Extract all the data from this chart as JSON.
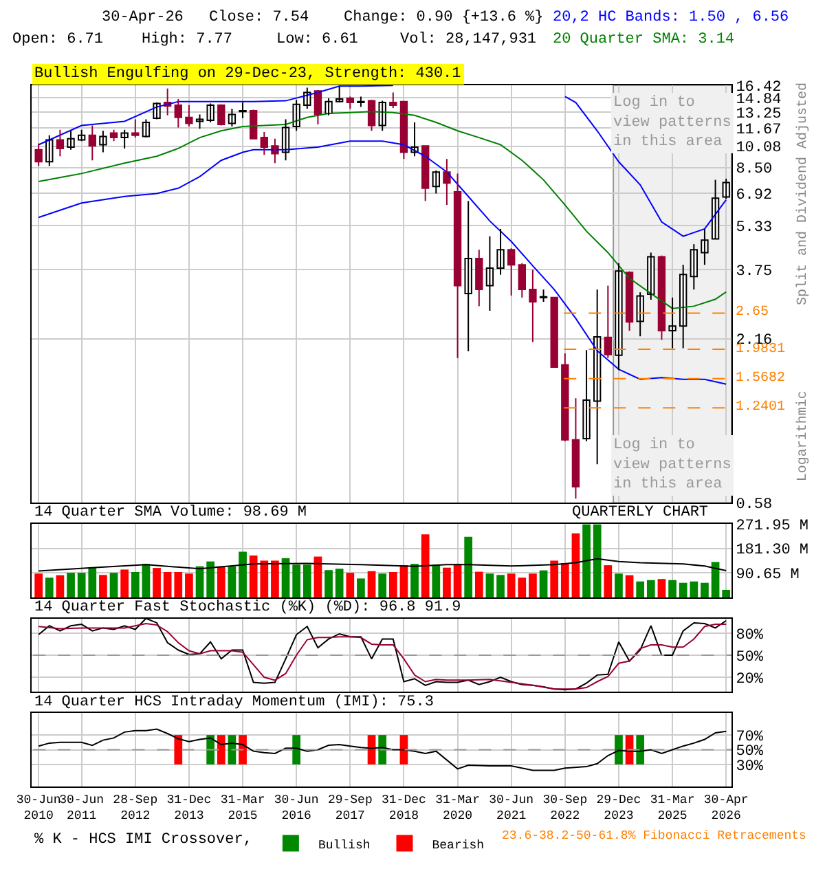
{
  "chart_data": [
    {
      "type": "candlestick",
      "title": "Bullish Engulfing on 29-Dec-23, Strength: 430.1",
      "categories": [
        "30-Jun 2010",
        null,
        null,
        null,
        "30-Jun 2011",
        null,
        null,
        null,
        null,
        "28-Sep 2012",
        null,
        null,
        null,
        null,
        "31-Dec 2013",
        null,
        null,
        null,
        null,
        "31-Mar 2015",
        null,
        null,
        null,
        null,
        "30-Jun 2016",
        null,
        null,
        null,
        null,
        "29-Sep 2017",
        null,
        null,
        null,
        null,
        "31-Dec 2018",
        null,
        null,
        null,
        null,
        "31-Mar 2020",
        null,
        null,
        null,
        null,
        "30-Jun 2021",
        null,
        null,
        null,
        null,
        "30-Sep 2022",
        null,
        null,
        null,
        null,
        "29-Dec 2023",
        null,
        null,
        null,
        null,
        "31-Mar 2025",
        null,
        null,
        null,
        null,
        "30-Apr 2026"
      ],
      "ohlc": [
        [
          9.8,
          10.3,
          8.6,
          8.9
        ],
        [
          8.9,
          11.0,
          8.6,
          10.6
        ],
        [
          10.6,
          11.5,
          9.3,
          9.9
        ],
        [
          10.0,
          11.4,
          9.8,
          10.7
        ],
        [
          10.6,
          11.5,
          10.5,
          11.0
        ],
        [
          11.0,
          11.9,
          9.0,
          10.1
        ],
        [
          10.2,
          11.4,
          9.6,
          10.9
        ],
        [
          11.2,
          11.5,
          10.5,
          10.8
        ],
        [
          10.8,
          11.5,
          9.9,
          11.2
        ],
        [
          11.2,
          12.5,
          10.8,
          11.0
        ],
        [
          10.9,
          12.5,
          10.8,
          12.2
        ],
        [
          12.6,
          14.3,
          12.5,
          14.2
        ],
        [
          14.3,
          16.0,
          12.9,
          13.9
        ],
        [
          14.0,
          14.7,
          11.7,
          12.7
        ],
        [
          12.7,
          14.0,
          11.8,
          12.1
        ],
        [
          12.3,
          13.0,
          11.6,
          12.5
        ],
        [
          12.4,
          14.2,
          12.2,
          14.0
        ],
        [
          14.0,
          14.1,
          11.9,
          12.0
        ],
        [
          12.1,
          13.6,
          11.8,
          13.0
        ],
        [
          13.3,
          14.3,
          12.6,
          13.4
        ],
        [
          13.4,
          13.5,
          10.7,
          10.7
        ],
        [
          10.8,
          11.3,
          9.4,
          10.0
        ],
        [
          10.1,
          10.7,
          8.8,
          9.5
        ],
        [
          9.6,
          12.5,
          9.0,
          11.7
        ],
        [
          11.8,
          14.6,
          11.4,
          14.1
        ],
        [
          14.0,
          16.1,
          13.6,
          15.5
        ],
        [
          15.7,
          15.8,
          12.0,
          13.0
        ],
        [
          13.1,
          14.8,
          12.9,
          14.4
        ],
        [
          14.4,
          16.3,
          14.3,
          14.7
        ],
        [
          14.8,
          15.0,
          13.6,
          14.3
        ],
        [
          14.3,
          15.0,
          13.8,
          14.4
        ],
        [
          14.5,
          14.6,
          11.4,
          11.9
        ],
        [
          11.9,
          14.5,
          11.4,
          14.3
        ],
        [
          14.3,
          15.5,
          13.7,
          14.0
        ],
        [
          14.4,
          14.4,
          9.1,
          9.6
        ],
        [
          9.6,
          12.2,
          9.3,
          10.0
        ],
        [
          10.1,
          10.1,
          6.5,
          7.2
        ],
        [
          7.3,
          8.3,
          6.9,
          8.2
        ],
        [
          8.2,
          9.1,
          6.3,
          7.5
        ],
        [
          7.0,
          8.1,
          1.85,
          3.3
        ],
        [
          3.1,
          6.5,
          1.95,
          4.1
        ],
        [
          4.1,
          4.4,
          2.8,
          3.2
        ],
        [
          3.3,
          4.9,
          2.7,
          3.8
        ],
        [
          3.8,
          5.2,
          3.6,
          4.4
        ],
        [
          4.4,
          4.45,
          3.05,
          3.9
        ],
        [
          3.9,
          3.95,
          3.0,
          3.2
        ],
        [
          3.2,
          3.75,
          2.1,
          2.9
        ],
        [
          3.0,
          3.2,
          2.9,
          3.02
        ],
        [
          3.0,
          3.0,
          1.72,
          1.72
        ],
        [
          1.75,
          1.92,
          0.95,
          0.96
        ],
        [
          0.96,
          1.34,
          0.6,
          0.66
        ],
        [
          0.97,
          1.97,
          0.95,
          1.32
        ],
        [
          1.31,
          3.2,
          0.79,
          2.19
        ],
        [
          2.18,
          3.3,
          1.85,
          1.9
        ],
        [
          1.89,
          3.95,
          1.68,
          3.71
        ],
        [
          3.67,
          3.7,
          2.3,
          2.47
        ],
        [
          2.48,
          3.13,
          2.2,
          3.04
        ],
        [
          3.08,
          4.3,
          2.95,
          4.16
        ],
        [
          4.16,
          4.2,
          2.14,
          2.3
        ],
        [
          2.3,
          3.0,
          2.0,
          2.39
        ],
        [
          2.39,
          3.9,
          2.0,
          3.61
        ],
        [
          3.55,
          4.6,
          3.2,
          4.4
        ],
        [
          4.3,
          5.2,
          3.9,
          4.75
        ],
        [
          4.8,
          7.7,
          4.8,
          6.65
        ],
        [
          6.71,
          7.77,
          6.61,
          7.54
        ]
      ],
      "colors": [
        "#990033",
        "#ffffff",
        "#990033",
        "#ffffff",
        "#ffffff",
        "#990033",
        "#ffffff",
        "#990033",
        "#ffffff",
        "#990033",
        "#ffffff",
        "#ffffff",
        "#990033",
        "#990033",
        "#990033",
        "#ffffff",
        "#ffffff",
        "#990033",
        "#ffffff",
        "#ffffff",
        "#990033",
        "#990033",
        "#990033",
        "#ffffff",
        "#ffffff",
        "#ffffff",
        "#990033",
        "#ffffff",
        "#ffffff",
        "#990033",
        "#ffffff",
        "#990033",
        "#ffffff",
        "#990033",
        "#990033",
        "#ffffff",
        "#990033",
        "#ffffff",
        "#990033",
        "#990033",
        "#ffffff",
        "#990033",
        "#ffffff",
        "#ffffff",
        "#990033",
        "#990033",
        "#990033",
        "#ffffff",
        "#990033",
        "#990033",
        "#990033",
        "#ffffff",
        "#ffffff",
        "#990033",
        "#ffffff",
        "#990033",
        "#ffffff",
        "#ffffff",
        "#990033",
        "#ffffff",
        "#ffffff",
        "#ffffff",
        "#ffffff",
        "#ffffff",
        "#ffffff"
      ],
      "series": [
        {
          "type": "line",
          "color": "#0000ff",
          "values": [
            10.2,
            null,
            null,
            null,
            11.9,
            null,
            null,
            null,
            12.3,
            null,
            null,
            13.8,
            null,
            14.4,
            null,
            null,
            14.4,
            null,
            null,
            null,
            14.4,
            null,
            null,
            14.5,
            null,
            null,
            15.5,
            null,
            16.3,
            null,
            16.3,
            null,
            null,
            16.4,
            null,
            null,
            null,
            null,
            null,
            null,
            null,
            null,
            null,
            null,
            null,
            null,
            null,
            null,
            null,
            null,
            null,
            null,
            null,
            null,
            null,
            null,
            null,
            null,
            null,
            null,
            null,
            null,
            null,
            null,
            null
          ]
        },
        {
          "type": "line",
          "color": "#0000ff",
          "values": [
            null,
            null,
            null,
            null,
            null,
            null,
            null,
            null,
            null,
            null,
            null,
            null,
            null,
            null,
            null,
            null,
            null,
            null,
            null,
            null,
            null,
            null,
            null,
            null,
            null,
            null,
            null,
            null,
            null,
            null,
            null,
            null,
            null,
            null,
            null,
            null,
            null,
            null,
            null,
            null,
            null,
            null,
            null,
            null,
            null,
            null,
            null,
            null,
            null,
            15.0,
            14.3,
            null,
            11.4,
            null,
            8.9,
            null,
            7.4,
            null,
            5.5,
            null,
            4.9,
            null,
            5.2,
            null,
            6.56
          ]
        },
        {
          "type": "line",
          "color": "#0000ff",
          "values": [
            5.7,
            null,
            null,
            null,
            6.4,
            null,
            null,
            null,
            6.74,
            null,
            null,
            6.9,
            null,
            7.2,
            null,
            7.9,
            null,
            9.0,
            null,
            9.6,
            9.8,
            null,
            null,
            9.8,
            null,
            null,
            10.0,
            null,
            null,
            10.5,
            null,
            null,
            10.5,
            null,
            10.2,
            null,
            9.3,
            null,
            8.2,
            null,
            6.74,
            null,
            5.54,
            null,
            4.7,
            null,
            3.87,
            null,
            3.2,
            null,
            2.54,
            null,
            1.96,
            null,
            1.69,
            null,
            1.56,
            null,
            1.58,
            null,
            1.56,
            null,
            1.56,
            null,
            1.5
          ]
        },
        {
          "type": "line",
          "color": "#008000",
          "values": [
            7.6,
            null,
            null,
            null,
            8.1,
            null,
            null,
            null,
            8.8,
            null,
            null,
            9.3,
            null,
            9.9,
            null,
            10.8,
            null,
            11.4,
            null,
            11.8,
            null,
            11.9,
            null,
            12.0,
            null,
            12.7,
            null,
            13.1,
            null,
            13.2,
            null,
            13.3,
            null,
            13.2,
            null,
            12.9,
            null,
            12.2,
            null,
            11.4,
            null,
            10.8,
            null,
            10.2,
            null,
            9.0,
            null,
            7.7,
            null,
            6.3,
            null,
            5.1,
            null,
            4.3,
            null,
            3.5,
            null,
            3.1,
            null,
            2.75,
            null,
            2.8,
            null,
            2.96,
            3.14
          ]
        }
      ],
      "log": true,
      "ylim": [
        0.58,
        16.42
      ],
      "yticks": [
        16.42,
        14.84,
        13.25,
        11.67,
        10.08,
        {
          "value": 8.5,
          "label": "8.50"
        },
        6.92,
        5.33,
        3.75,
        2.16,
        0.58
      ],
      "grid": true,
      "tick_labels": "y",
      "ref_lines": [
        {
          "axis": "y",
          "value": 2.65,
          "label": "2.65",
          "color": "#ff8000",
          "line_style": "dashed"
        },
        {
          "axis": "y",
          "value": 1.9831,
          "label": "1.9831",
          "color": "#ff8000",
          "line_style": "dashed"
        },
        {
          "axis": "y",
          "value": 1.5682,
          "label": "1.5682",
          "color": "#ff8000",
          "line_style": "dashed"
        },
        {
          "axis": "y",
          "value": 1.2401,
          "label": "1.2401",
          "color": "#ff8000",
          "line_style": "dashed"
        }
      ],
      "bands": [
        {
          "axis": "x",
          "from": "29-Dec 2023",
          "to": "30-Apr 2026",
          "color": "#f0f0f0"
        }
      ],
      "annotations": [
        "30-Apr-26",
        "Close: 7.54",
        "Change: 0.90 {+13.6 %}",
        "Open: 6.71",
        "High: 7.77",
        "Low: 6.61",
        "Vol: 28,147,931",
        "20,2 HC Bands: 1.50 , 6.56",
        "20 Quarter SMA: 3.14",
        "Log in to view patterns in this area",
        "Log in to view patterns in this area",
        "Split and Dividend Adjusted",
        "Logarithmic",
        "23.6-38.2-50-61.8% Fibonacci Retracements"
      ]
    },
    {
      "type": "bar",
      "title": "14 Quarter SMA Volume: 98.69 M",
      "categories": [
        "30-Jun 2010",
        null,
        null,
        null,
        "30-Jun 2011",
        null,
        null,
        null,
        null,
        "28-Sep 2012",
        null,
        null,
        null,
        null,
        "31-Dec 2013",
        null,
        null,
        null,
        null,
        "31-Mar 2015",
        null,
        null,
        null,
        null,
        "30-Jun 2016",
        null,
        null,
        null,
        null,
        "29-Sep 2017",
        null,
        null,
        null,
        null,
        "31-Dec 2018",
        null,
        null,
        null,
        null,
        "31-Mar 2020",
        null,
        null,
        null,
        null,
        "30-Jun 2021",
        null,
        null,
        null,
        null,
        "30-Sep 2022",
        null,
        null,
        null,
        null,
        "29-Dec 2023",
        null,
        null,
        null,
        null,
        "31-Mar 2025",
        null,
        null,
        null,
        null,
        "30-Apr 2026"
      ],
      "series": [
        {
          "type": "bar",
          "values": [
            88,
            73,
            82,
            91,
            91,
            110,
            83,
            91,
            103,
            94,
            124,
            109,
            94,
            94,
            88,
            115,
            133,
            115,
            115,
            169,
            155,
            136,
            136,
            145,
            121,
            121,
            151,
            101,
            106,
            91,
            70,
            97,
            88,
            94,
            119,
            124,
            233,
            121,
            110,
            124,
            224,
            95,
            88,
            83,
            88,
            73,
            88,
            100,
            136,
            127,
            237,
            270,
            270,
            119,
            88,
            82,
            59,
            64,
            68,
            64,
            54,
            59,
            54,
            131,
            28
          ],
          "colors": [
            "#ff0000",
            "#008800",
            "#ff0000",
            "#008800",
            "#008800",
            "#008800",
            "#ff0000",
            "#008800",
            "#ff0000",
            "#008800",
            "#008800",
            "#ff0000",
            "#ff0000",
            "#ff0000",
            "#ff0000",
            "#008800",
            "#008800",
            "#ff0000",
            "#008800",
            "#008800",
            "#ff0000",
            "#ff0000",
            "#ff0000",
            "#008800",
            "#008800",
            "#008800",
            "#ff0000",
            "#008800",
            "#008800",
            "#ff0000",
            "#008800",
            "#ff0000",
            "#008800",
            "#ff0000",
            "#ff0000",
            "#008800",
            "#ff0000",
            "#008800",
            "#ff0000",
            "#ff0000",
            "#008800",
            "#ff0000",
            "#008800",
            "#008800",
            "#ff0000",
            "#ff0000",
            "#ff0000",
            "#008800",
            "#ff0000",
            "#ff0000",
            "#ff0000",
            "#008800",
            "#008800",
            "#ff0000",
            "#008800",
            "#ff0000",
            "#008800",
            "#008800",
            "#ff0000",
            "#008800",
            "#008800",
            "#008800",
            "#008800",
            "#008800",
            "#008800"
          ]
        },
        {
          "type": "line",
          "color": "#000000",
          "values": [
            98,
            null,
            null,
            null,
            null,
            110,
            null,
            null,
            null,
            null,
            121,
            null,
            null,
            null,
            null,
            106,
            null,
            null,
            null,
            null,
            124,
            null,
            null,
            null,
            null,
            126,
            null,
            null,
            null,
            null,
            121,
            null,
            null,
            null,
            null,
            115,
            null,
            null,
            121,
            null,
            121,
            null,
            null,
            null,
            116,
            null,
            null,
            null,
            121,
            null,
            128,
            null,
            143,
            null,
            133,
            null,
            128,
            null,
            null,
            null,
            124,
            null,
            116,
            null,
            99
          ]
        }
      ],
      "ylim": [
        0,
        271.95
      ],
      "yticks": [
        {
          "value": 90.65,
          "label": "90.65 M"
        },
        {
          "value": 181.3,
          "label": "181.30 M"
        },
        {
          "value": 271.95,
          "label": "271.95 M"
        }
      ],
      "grid": true,
      "tick_labels": "y",
      "annotations": [
        "QUARTERLY CHART"
      ]
    },
    {
      "type": "line",
      "title": "14 Quarter Fast Stochastic (%K) (%D): 96.8 91.9",
      "categories": [
        "30-Jun 2010",
        null,
        null,
        null,
        "30-Jun 2011",
        null,
        null,
        null,
        null,
        "28-Sep 2012",
        null,
        null,
        null,
        null,
        "31-Dec 2013",
        null,
        null,
        null,
        null,
        "31-Mar 2015",
        null,
        null,
        null,
        null,
        "30-Jun 2016",
        null,
        null,
        null,
        null,
        "29-Sep 2017",
        null,
        null,
        null,
        null,
        "31-Dec 2018",
        null,
        null,
        null,
        null,
        "31-Mar 2020",
        null,
        null,
        null,
        null,
        "30-Jun 2021",
        null,
        null,
        null,
        null,
        "30-Sep 2022",
        null,
        null,
        null,
        null,
        "29-Dec 2023",
        null,
        null,
        null,
        null,
        "31-Mar 2025",
        null,
        null,
        null,
        null,
        "30-Apr 2026"
      ],
      "series": [
        {
          "color": "#000000",
          "values": [
            78,
            90,
            83,
            90,
            92,
            83,
            87,
            85,
            90,
            85,
            100,
            94,
            67,
            57,
            51,
            52,
            68,
            45,
            57,
            57,
            13,
            12,
            13,
            45,
            78,
            89,
            60,
            72,
            79,
            75,
            75,
            45,
            72,
            72,
            14,
            18,
            9,
            14,
            13,
            13,
            16,
            10,
            14,
            20,
            14,
            10,
            9,
            7,
            4,
            3,
            4,
            12,
            23,
            24,
            68,
            42,
            57,
            90,
            50,
            50,
            83,
            94,
            93,
            87,
            97
          ]
        },
        {
          "color": "#990033",
          "values": [
            89,
            null,
            86,
            null,
            87,
            null,
            87,
            null,
            87,
            null,
            93,
            91,
            82,
            67,
            56,
            52,
            56,
            56,
            56,
            54,
            37,
            20,
            16,
            25,
            50,
            71,
            74,
            74,
            75,
            75,
            74,
            65,
            64,
            64,
            45,
            23,
            14,
            17,
            16,
            null,
            16,
            null,
            17,
            null,
            13,
            null,
            9,
            null,
            4,
            null,
            4,
            6,
            14,
            21,
            39,
            42,
            59,
            64,
            64,
            61,
            61,
            72,
            89,
            92,
            92
          ]
        }
      ],
      "ylim": [
        0,
        100
      ],
      "yticks": [
        {
          "value": 20,
          "label": "20%"
        },
        {
          "value": 50,
          "label": "50%"
        },
        {
          "value": 80,
          "label": "80%"
        }
      ],
      "grid": true,
      "tick_labels": "y",
      "ref_lines": [
        {
          "axis": "y",
          "value": 50,
          "color": "#999999",
          "line_style": "dashed"
        }
      ]
    },
    {
      "type": "line",
      "title": "14 Quarter HCS Intraday Momentum (IMI): 75.3",
      "categories": [
        "30-Jun 2010",
        null,
        null,
        null,
        "30-Jun 2011",
        null,
        null,
        null,
        null,
        "28-Sep 2012",
        null,
        null,
        null,
        null,
        "31-Dec 2013",
        null,
        null,
        null,
        null,
        "31-Mar 2015",
        null,
        null,
        null,
        null,
        "30-Jun 2016",
        null,
        null,
        null,
        null,
        "29-Sep 2017",
        null,
        null,
        null,
        null,
        "31-Dec 2018",
        null,
        null,
        null,
        null,
        "31-Mar 2020",
        null,
        null,
        null,
        null,
        "30-Jun 2021",
        null,
        null,
        null,
        null,
        "30-Sep 2022",
        null,
        null,
        null,
        null,
        "29-Dec 2023",
        null,
        null,
        null,
        null,
        "31-Mar 2025",
        null,
        null,
        null,
        null,
        "30-Apr 2026"
      ],
      "series": [
        {
          "type": "bar",
          "name": "Bullish",
          "color": "#008800",
          "values": [
            null,
            null,
            null,
            null,
            null,
            null,
            null,
            null,
            null,
            null,
            null,
            null,
            null,
            null,
            null,
            null,
            40,
            null,
            40,
            null,
            null,
            null,
            null,
            null,
            40,
            null,
            null,
            null,
            null,
            null,
            null,
            null,
            40,
            null,
            null,
            null,
            null,
            null,
            null,
            null,
            null,
            null,
            null,
            null,
            null,
            null,
            null,
            null,
            null,
            null,
            null,
            null,
            null,
            null,
            40,
            null,
            40,
            null,
            null,
            null,
            null,
            null,
            null,
            null,
            null
          ],
          "base": [
            null,
            null,
            null,
            null,
            null,
            null,
            null,
            null,
            null,
            null,
            null,
            null,
            null,
            null,
            null,
            null,
            30,
            null,
            30,
            null,
            null,
            null,
            null,
            null,
            30,
            null,
            null,
            null,
            null,
            null,
            null,
            null,
            30,
            null,
            null,
            null,
            null,
            null,
            null,
            null,
            null,
            null,
            null,
            null,
            null,
            null,
            null,
            null,
            null,
            null,
            null,
            null,
            null,
            null,
            30,
            null,
            30,
            null,
            null,
            null,
            null,
            null,
            null,
            null,
            null
          ]
        },
        {
          "type": "bar",
          "name": "Bearish",
          "color": "#ff0000",
          "values": [
            null,
            null,
            null,
            null,
            null,
            null,
            null,
            null,
            null,
            null,
            null,
            null,
            null,
            40,
            null,
            null,
            null,
            40,
            null,
            40,
            null,
            null,
            null,
            null,
            null,
            null,
            null,
            null,
            null,
            null,
            null,
            40,
            null,
            null,
            40,
            null,
            null,
            null,
            null,
            null,
            null,
            null,
            null,
            null,
            null,
            null,
            null,
            null,
            null,
            null,
            null,
            null,
            null,
            null,
            null,
            40,
            null,
            null,
            null,
            null,
            null,
            null,
            null,
            null,
            null
          ],
          "base": [
            null,
            null,
            null,
            null,
            null,
            null,
            null,
            null,
            null,
            null,
            null,
            null,
            null,
            30,
            null,
            null,
            null,
            30,
            null,
            30,
            null,
            null,
            null,
            null,
            null,
            null,
            null,
            null,
            null,
            null,
            null,
            30,
            null,
            null,
            30,
            null,
            null,
            null,
            null,
            null,
            null,
            null,
            null,
            null,
            null,
            null,
            null,
            null,
            null,
            null,
            null,
            null,
            null,
            null,
            null,
            30,
            null,
            null,
            null,
            null,
            null,
            null,
            null,
            null,
            null
          ]
        },
        {
          "type": "line",
          "color": "#000000",
          "values": [
            55,
            59,
            60,
            null,
            60,
            56,
            63,
            66,
            74,
            76,
            76,
            78,
            72,
            65,
            61,
            64,
            66,
            57,
            59,
            57,
            48,
            46,
            45,
            52,
            52,
            48,
            50,
            56,
            57,
            55,
            53,
            52,
            53,
            50,
            50,
            48,
            45,
            48,
            null,
            24,
            29,
            null,
            28,
            null,
            28,
            null,
            22,
            null,
            22,
            25,
            null,
            27,
            31,
            42,
            49,
            48,
            48,
            50,
            45,
            50,
            55,
            59,
            64,
            73,
            75
          ]
        }
      ],
      "ylim": [
        0,
        100
      ],
      "yticks": [
        {
          "value": 30,
          "label": "30%"
        },
        {
          "value": 50,
          "label": "50%"
        },
        {
          "value": 70,
          "label": "70%"
        }
      ],
      "grid": true,
      "ref_lines": [
        {
          "axis": "y",
          "value": 50,
          "color": "#999999",
          "line_style": "dashed"
        }
      ],
      "legend": "bottom",
      "legend_title": "% K - HCS IMI Crossover,"
    }
  ]
}
